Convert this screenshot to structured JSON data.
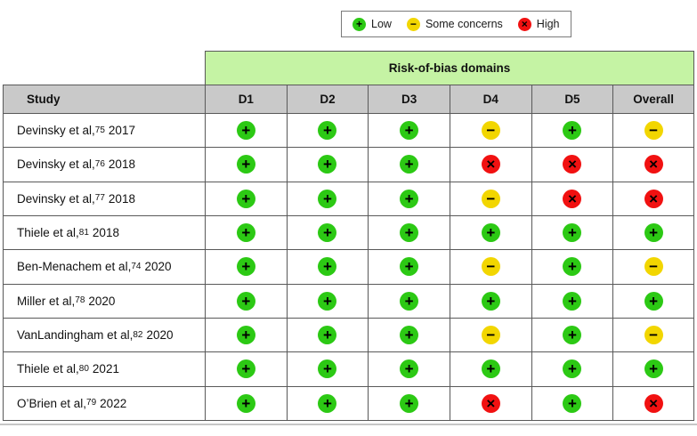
{
  "legend": {
    "items": [
      {
        "label": "Low",
        "judgment": "low"
      },
      {
        "label": "Some concerns",
        "judgment": "some"
      },
      {
        "label": "High",
        "judgment": "high"
      }
    ]
  },
  "symbols": {
    "low": "+",
    "some": "−",
    "high": "×"
  },
  "colors": {
    "low": "#2cc914",
    "some": "#f2d600",
    "high": "#f11111",
    "domains_band": "#c5f3a4",
    "header_gray": "#c9c9c9"
  },
  "table": {
    "domains_header": "Risk-of-bias domains",
    "columns": [
      "Study",
      "D1",
      "D2",
      "D3",
      "D4",
      "D5",
      "Overall"
    ],
    "rows": [
      {
        "study": "Devinsky et al,",
        "ref": "75",
        "year": "2017",
        "judgments": [
          "low",
          "low",
          "low",
          "some",
          "low",
          "some"
        ]
      },
      {
        "study": "Devinsky et al,",
        "ref": "76",
        "year": "2018",
        "judgments": [
          "low",
          "low",
          "low",
          "high",
          "high",
          "high"
        ]
      },
      {
        "study": "Devinsky et al,",
        "ref": "77",
        "year": "2018",
        "judgments": [
          "low",
          "low",
          "low",
          "some",
          "high",
          "high"
        ]
      },
      {
        "study": "Thiele et al,",
        "ref": "81",
        "year": "2018",
        "judgments": [
          "low",
          "low",
          "low",
          "low",
          "low",
          "low"
        ]
      },
      {
        "study": "Ben-Menachem et al,",
        "ref": "74",
        "year": "2020",
        "judgments": [
          "low",
          "low",
          "low",
          "some",
          "low",
          "some"
        ]
      },
      {
        "study": "Miller et al,",
        "ref": "78",
        "year": "2020",
        "judgments": [
          "low",
          "low",
          "low",
          "low",
          "low",
          "low"
        ]
      },
      {
        "study": "VanLandingham et al,",
        "ref": "82",
        "year": "2020",
        "judgments": [
          "low",
          "low",
          "low",
          "some",
          "low",
          "some"
        ]
      },
      {
        "study": "Thiele et al,",
        "ref": "80",
        "year": "2021",
        "judgments": [
          "low",
          "low",
          "low",
          "low",
          "low",
          "low"
        ]
      },
      {
        "study": "O’Brien et al,",
        "ref": "79",
        "year": "2022",
        "judgments": [
          "low",
          "low",
          "low",
          "high",
          "low",
          "high"
        ]
      }
    ]
  },
  "chart_data": {
    "type": "table",
    "title": "Risk-of-bias domains",
    "legend": [
      "Low",
      "Some concerns",
      "High"
    ],
    "columns": [
      "D1",
      "D2",
      "D3",
      "D4",
      "D5",
      "Overall"
    ],
    "rows": [
      "Devinsky et al, 2017 (ref 75)",
      "Devinsky et al, 2018 (ref 76)",
      "Devinsky et al, 2018 (ref 77)",
      "Thiele et al, 2018 (ref 81)",
      "Ben-Menachem et al, 2020 (ref 74)",
      "Miller et al, 2020 (ref 78)",
      "VanLandingham et al, 2020 (ref 82)",
      "Thiele et al, 2021 (ref 80)",
      "O’Brien et al, 2022 (ref 79)"
    ],
    "values": [
      [
        "Low",
        "Low",
        "Low",
        "Some concerns",
        "Low",
        "Some concerns"
      ],
      [
        "Low",
        "Low",
        "Low",
        "High",
        "High",
        "High"
      ],
      [
        "Low",
        "Low",
        "Low",
        "Some concerns",
        "High",
        "High"
      ],
      [
        "Low",
        "Low",
        "Low",
        "Low",
        "Low",
        "Low"
      ],
      [
        "Low",
        "Low",
        "Low",
        "Some concerns",
        "Low",
        "Some concerns"
      ],
      [
        "Low",
        "Low",
        "Low",
        "Low",
        "Low",
        "Low"
      ],
      [
        "Low",
        "Low",
        "Low",
        "Some concerns",
        "Low",
        "Some concerns"
      ],
      [
        "Low",
        "Low",
        "Low",
        "Low",
        "Low",
        "Low"
      ],
      [
        "Low",
        "Low",
        "Low",
        "High",
        "Low",
        "High"
      ]
    ]
  }
}
